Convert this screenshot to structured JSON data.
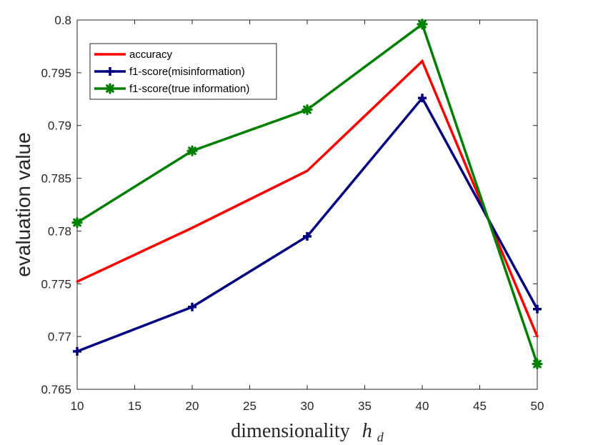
{
  "chart_data": {
    "type": "line",
    "x": [
      10,
      20,
      30,
      40,
      50
    ],
    "series": [
      {
        "name": "accuracy",
        "color": "#ff0000",
        "marker": "none",
        "values": [
          0.7752,
          0.7803,
          0.7857,
          0.7961,
          0.77
        ]
      },
      {
        "name": "f1-score(misinformation)",
        "color": "#000080",
        "marker": "plus",
        "values": [
          0.7686,
          0.7728,
          0.7795,
          0.7926,
          0.7726
        ]
      },
      {
        "name": "f1-score(true information)",
        "color": "#008000",
        "marker": "asterisk",
        "values": [
          0.7808,
          0.7876,
          0.7915,
          0.7996,
          0.7674
        ]
      }
    ],
    "xlabel_text": "dimensionality",
    "xlabel_symbol": "h",
    "xlabel_subscript": "d",
    "ylabel": "evaluation value",
    "xlim": [
      10,
      50
    ],
    "ylim": [
      0.765,
      0.8
    ],
    "xticks": [
      10,
      15,
      20,
      25,
      30,
      35,
      40,
      45,
      50
    ],
    "yticks": [
      0.765,
      0.77,
      0.775,
      0.78,
      0.785,
      0.79,
      0.795,
      0.8
    ],
    "ytick_labels": [
      "0.765",
      "0.77",
      "0.775",
      "0.78",
      "0.785",
      "0.79",
      "0.795",
      "0.8"
    ],
    "legend_position": "top-left",
    "grid": false
  }
}
